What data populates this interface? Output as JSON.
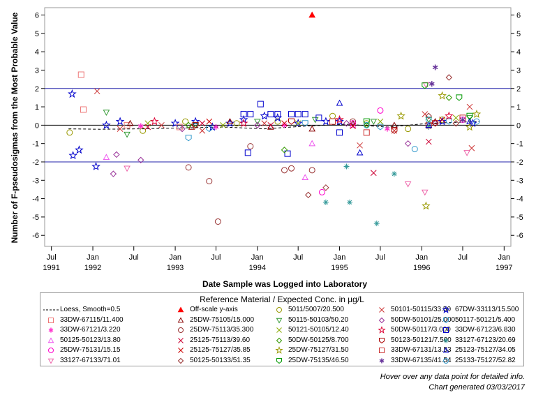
{
  "chart_data": {
    "type": "scatter",
    "ylabel": "Number of F-pseudosigmas from the Most Probable Value",
    "xlabel": "Date Sample was Logged into Laboratory",
    "ylim": [
      -6.6,
      6.4
    ],
    "y_ticks": [
      6,
      5,
      4,
      3,
      2,
      1,
      0,
      -1,
      -2,
      -3,
      -4,
      -5,
      -6
    ],
    "x_ticks": [
      {
        "label": "Jul",
        "sub": "1991",
        "date": "1991-07-01"
      },
      {
        "label": "Jan",
        "sub": "1992",
        "date": "1992-01-01"
      },
      {
        "label": "Jul",
        "sub": "",
        "date": "1992-07-01"
      },
      {
        "label": "Jan",
        "sub": "1993",
        "date": "1993-01-01"
      },
      {
        "label": "Jul",
        "sub": "",
        "date": "1993-07-01"
      },
      {
        "label": "Jan",
        "sub": "1994",
        "date": "1994-01-01"
      },
      {
        "label": "Jul",
        "sub": "",
        "date": "1994-07-01"
      },
      {
        "label": "Jan",
        "sub": "1995",
        "date": "1995-01-01"
      },
      {
        "label": "Jul",
        "sub": "",
        "date": "1995-07-01"
      },
      {
        "label": "Jan",
        "sub": "1996",
        "date": "1996-01-01"
      },
      {
        "label": "Jul",
        "sub": "",
        "date": "1996-07-01"
      },
      {
        "label": "Jan",
        "sub": "1997",
        "date": "1997-01-01"
      }
    ],
    "xlim": [
      "1991-06-01",
      "1997-01-31"
    ],
    "reference_lines": [
      2,
      0,
      -2
    ],
    "legend_title": "Reference Material / Expected Conc. in µg/L",
    "legend_placement": "bottom",
    "series": [
      {
        "name": "Loess, Smooth=0.5",
        "marker": "dash",
        "color": "#000000",
        "line": true,
        "points": [
          [
            "1991-09-15",
            -0.2
          ],
          [
            "1992-02-01",
            -0.22
          ],
          [
            "1992-08-01",
            -0.2
          ],
          [
            "1993-02-01",
            -0.15
          ],
          [
            "1993-08-01",
            -0.1
          ],
          [
            "1994-02-01",
            -0.2
          ],
          [
            "1994-08-01",
            -0.05
          ],
          [
            "1995-02-01",
            0.05
          ],
          [
            "1995-08-01",
            -0.1
          ],
          [
            "1996-02-01",
            0.1
          ],
          [
            "1996-09-15",
            0.2
          ]
        ]
      },
      {
        "name": "Off-scale y-axis",
        "marker": "triangle-filled",
        "color": "#ff0000",
        "points": [
          [
            "1994-09-01",
            6.0
          ]
        ]
      },
      {
        "name": "5011/5007/20.500",
        "marker": "circle",
        "color": "#999900",
        "points": [
          [
            "1991-09-20",
            -0.4
          ],
          [
            "1992-08-10",
            -0.3
          ],
          [
            "1993-02-15",
            0.2
          ],
          [
            "1993-10-01",
            0.1
          ],
          [
            "1994-04-01",
            0.2
          ],
          [
            "1994-12-01",
            0.5
          ],
          [
            "1995-05-01",
            0.1
          ],
          [
            "1995-11-01",
            -0.2
          ],
          [
            "1996-04-01",
            0.3
          ]
        ]
      },
      {
        "name": "50101-50115/33.50",
        "marker": "x",
        "color": "#cc3333",
        "points": [
          [
            "1992-01-20",
            1.85
          ],
          [
            "1992-05-01",
            -0.2
          ],
          [
            "1992-11-01",
            0.0
          ],
          [
            "1993-05-01",
            -0.3
          ],
          [
            "1994-02-01",
            0.1
          ],
          [
            "1995-04-01",
            -1.1
          ],
          [
            "1995-09-01",
            -0.3
          ],
          [
            "1996-01-15",
            0.6
          ],
          [
            "1996-08-01",
            1.0
          ],
          [
            "1996-08-10",
            -1.25
          ]
        ]
      },
      {
        "name": "67DW-33113/15.500",
        "marker": "star",
        "color": "#0000cc",
        "points": [
          [
            "1991-10-01",
            1.7
          ],
          [
            "1991-10-05",
            -1.65
          ],
          [
            "1991-11-01",
            -1.35
          ],
          [
            "1992-01-15",
            -2.25
          ],
          [
            "1992-03-01",
            0.0
          ],
          [
            "1992-05-01",
            0.2
          ],
          [
            "1993-01-01",
            0.1
          ],
          [
            "1993-04-01",
            0.2
          ],
          [
            "1993-06-15",
            -0.1
          ],
          [
            "1993-09-01",
            0.1
          ],
          [
            "1993-11-01",
            0.3
          ],
          [
            "1994-02-01",
            0.5
          ],
          [
            "1994-04-01",
            0.4
          ],
          [
            "1994-07-01",
            0.1
          ],
          [
            "1994-11-01",
            0.2
          ],
          [
            "1995-01-01",
            0.2
          ],
          [
            "1996-04-01",
            0.2
          ],
          [
            "1996-08-15",
            0.1
          ]
        ]
      },
      {
        "name": "33DW-67115/11.400",
        "marker": "square",
        "color": "#ee7777",
        "points": [
          [
            "1991-11-10",
            2.75
          ],
          [
            "1991-11-20",
            0.85
          ],
          [
            "1992-06-01",
            0.0
          ],
          [
            "1993-01-20",
            -0.1
          ]
        ]
      },
      {
        "name": "25DW-75105/15.000",
        "marker": "triangle",
        "color": "#880000",
        "points": [
          [
            "1992-06-15",
            0.1
          ],
          [
            "1993-03-15",
            -0.1
          ],
          [
            "1993-09-01",
            0.2
          ],
          [
            "1994-03-01",
            -0.1
          ],
          [
            "1994-09-01",
            -0.2
          ],
          [
            "1995-03-01",
            0.1
          ],
          [
            "1995-09-01",
            0.0
          ],
          [
            "1996-03-01",
            0.2
          ]
        ]
      },
      {
        "name": "50115-50103/50.20",
        "marker": "triangle-down",
        "color": "#339933",
        "points": [
          [
            "1992-03-01",
            0.7
          ],
          [
            "1992-06-01",
            -0.5
          ],
          [
            "1993-04-01",
            0.0
          ],
          [
            "1994-01-01",
            0.2
          ],
          [
            "1994-09-15",
            0.3
          ],
          [
            "1995-06-01",
            0.2
          ],
          [
            "1996-02-01",
            0.3
          ],
          [
            "1996-08-01",
            0.4
          ]
        ]
      },
      {
        "name": "50DW-50101/25.000",
        "marker": "diamond",
        "color": "#993399",
        "points": [
          [
            "1992-04-01",
            -2.65
          ],
          [
            "1992-04-15",
            -1.6
          ],
          [
            "1992-08-01",
            -1.9
          ],
          [
            "1993-02-01",
            -0.2
          ],
          [
            "1994-01-01",
            0.0
          ],
          [
            "1995-02-01",
            0.1
          ],
          [
            "1995-11-01",
            -1.0
          ],
          [
            "1996-03-01",
            0.1
          ]
        ]
      },
      {
        "name": "50117-50121/5.400",
        "marker": "shield",
        "color": "#3399cc",
        "points": [
          [
            "1993-03-01",
            -0.7
          ],
          [
            "1993-06-01",
            -0.2
          ],
          [
            "1994-08-01",
            0.1
          ],
          [
            "1995-07-01",
            -0.1
          ],
          [
            "1996-05-01",
            0.2
          ]
        ]
      },
      {
        "name": "33DW-67121/3.220",
        "marker": "asterisk",
        "color": "#ff33cc",
        "points": [
          [
            "1992-08-01",
            -0.05
          ],
          [
            "1993-07-01",
            -0.1
          ],
          [
            "1994-05-01",
            0.0
          ],
          [
            "1995-08-01",
            -0.2
          ]
        ]
      },
      {
        "name": "25DW-75113/35.300",
        "marker": "circle",
        "color": "#993333",
        "points": [
          [
            "1993-03-01",
            -2.3
          ],
          [
            "1993-06-01",
            -3.05
          ],
          [
            "1993-07-10",
            -5.25
          ],
          [
            "1993-12-01",
            -1.15
          ],
          [
            "1994-05-01",
            -2.45
          ],
          [
            "1994-06-01",
            -2.35
          ],
          [
            "1994-09-01",
            -2.45
          ],
          [
            "1995-03-01",
            0.2
          ]
        ]
      },
      {
        "name": "50121-50105/12.40",
        "marker": "x",
        "color": "#88aa00",
        "points": [
          [
            "1992-09-01",
            0.1
          ],
          [
            "1993-08-01",
            0.0
          ],
          [
            "1994-07-01",
            0.1
          ],
          [
            "1995-07-01",
            0.2
          ],
          [
            "1996-06-01",
            0.4
          ]
        ]
      },
      {
        "name": "50DW-50117/3.000",
        "marker": "star",
        "color": "#dd0033",
        "points": [
          [
            "1992-10-01",
            0.2
          ],
          [
            "1993-11-01",
            0.1
          ],
          [
            "1995-01-01",
            0.3
          ],
          [
            "1996-05-01",
            0.5
          ]
        ]
      },
      {
        "name": "33DW-67123/6.830",
        "marker": "square",
        "color": "#0000cc",
        "points": [
          [
            "1993-11-01",
            0.6
          ],
          [
            "1993-12-01",
            0.6
          ],
          [
            "1994-01-15",
            1.15
          ],
          [
            "1994-03-01",
            0.6
          ],
          [
            "1994-04-01",
            0.6
          ],
          [
            "1994-06-01",
            0.6
          ],
          [
            "1994-07-01",
            0.6
          ],
          [
            "1994-08-01",
            0.6
          ],
          [
            "1994-10-01",
            0.4
          ],
          [
            "1994-05-15",
            -1.55
          ],
          [
            "1993-11-20",
            -1.5
          ],
          [
            "1995-01-01",
            -0.4
          ]
        ]
      },
      {
        "name": "50125-50123/13.80",
        "marker": "triangle",
        "color": "#ee55ee",
        "points": [
          [
            "1992-03-01",
            -1.75
          ],
          [
            "1994-08-01",
            -2.85
          ],
          [
            "1994-09-01",
            -1.0
          ],
          [
            "1995-03-01",
            0.0
          ]
        ]
      },
      {
        "name": "25125-75113/39.60",
        "marker": "x",
        "color": "#cc0033",
        "points": [
          [
            "1992-09-01",
            -0.1
          ],
          [
            "1993-05-01",
            0.1
          ],
          [
            "1994-03-01",
            0.0
          ],
          [
            "1995-06-01",
            -2.6
          ],
          [
            "1996-02-01",
            -0.9
          ]
        ]
      },
      {
        "name": "50DW-50125/8.700",
        "marker": "diamond",
        "color": "#339900",
        "points": [
          [
            "1993-03-01",
            0.0
          ],
          [
            "1994-05-01",
            -1.35
          ],
          [
            "1995-05-01",
            0.0
          ],
          [
            "1996-05-01",
            1.5
          ]
        ]
      },
      {
        "name": "50123-50121/7.500",
        "marker": "shield",
        "color": "#aa0000",
        "points": [
          [
            "1993-04-01",
            0.0
          ],
          [
            "1994-06-01",
            0.2
          ],
          [
            "1995-09-01",
            -0.3
          ],
          [
            "1996-03-01",
            0.1
          ]
        ]
      },
      {
        "name": "33127-67123/20.69",
        "marker": "plus-x",
        "color": "#339999",
        "points": [
          [
            "1994-11-01",
            -4.2
          ],
          [
            "1995-02-01",
            -2.25
          ],
          [
            "1995-02-15",
            -4.2
          ],
          [
            "1995-06-15",
            -5.35
          ],
          [
            "1995-09-01",
            -2.65
          ],
          [
            "1996-02-01",
            -0.1
          ]
        ]
      },
      {
        "name": "25DW-75131/15.15",
        "marker": "circle",
        "color": "#ff00cc",
        "points": [
          [
            "1994-10-15",
            -3.65
          ],
          [
            "1995-03-01",
            0.1
          ],
          [
            "1995-07-01",
            0.8
          ],
          [
            "1996-07-01",
            0.3
          ]
        ]
      },
      {
        "name": "25125-75127/35.85",
        "marker": "x",
        "color": "#cc0000",
        "points": [
          [
            "1993-06-01",
            0.2
          ],
          [
            "1994-05-01",
            0.1
          ],
          [
            "1995-03-01",
            -0.05
          ],
          [
            "1996-04-01",
            0.3
          ]
        ]
      },
      {
        "name": "25DW-75127/31.50",
        "marker": "star",
        "color": "#999900",
        "points": [
          [
            "1995-10-01",
            0.5
          ],
          [
            "1996-01-20",
            -4.4
          ],
          [
            "1996-04-01",
            1.6
          ],
          [
            "1996-09-01",
            0.6
          ],
          [
            "1996-08-01",
            -0.1
          ]
        ]
      },
      {
        "name": "33DW-67131/13.53",
        "marker": "square",
        "color": "#cc3333",
        "points": [
          [
            "1994-12-01",
            0.2
          ],
          [
            "1995-05-01",
            -0.4
          ],
          [
            "1996-02-01",
            0.0
          ],
          [
            "1996-07-01",
            0.4
          ]
        ]
      },
      {
        "name": "25123-75127/34.05",
        "marker": "triangle",
        "color": "#0000cc",
        "points": [
          [
            "1995-01-01",
            1.2
          ],
          [
            "1995-04-01",
            -1.5
          ],
          [
            "1996-02-01",
            0.0
          ],
          [
            "1996-08-01",
            0.2
          ]
        ]
      },
      {
        "name": "33127-67133/71.01",
        "marker": "triangle-down",
        "color": "#ee66aa",
        "points": [
          [
            "1992-06-01",
            -2.35
          ],
          [
            "1995-11-01",
            -3.2
          ],
          [
            "1996-01-15",
            -3.65
          ],
          [
            "1996-01-20",
            2.2
          ],
          [
            "1996-07-20",
            -1.5
          ]
        ]
      },
      {
        "name": "50125-50133/51.35",
        "marker": "diamond",
        "color": "#993333",
        "points": [
          [
            "1994-08-15",
            -3.8
          ],
          [
            "1994-11-01",
            -3.4
          ],
          [
            "1996-02-01",
            0.5
          ],
          [
            "1996-05-01",
            2.6
          ],
          [
            "1996-06-01",
            0.1
          ]
        ]
      },
      {
        "name": "25DW-75135/46.50",
        "marker": "shield",
        "color": "#009900",
        "points": [
          [
            "1995-05-01",
            0.2
          ],
          [
            "1996-01-15",
            2.15
          ],
          [
            "1996-06-15",
            1.5
          ],
          [
            "1996-08-01",
            0.5
          ]
        ]
      },
      {
        "name": "33DW-67135/41.54",
        "marker": "asterisk",
        "color": "#663399",
        "points": [
          [
            "1996-02-15",
            2.25
          ],
          [
            "1996-03-01",
            3.15
          ],
          [
            "1996-07-01",
            0.3
          ]
        ]
      },
      {
        "name": "25133-75127/52.82",
        "marker": "circle",
        "color": "#3399cc",
        "points": [
          [
            "1995-05-01",
            0.0
          ],
          [
            "1995-12-01",
            -1.3
          ],
          [
            "1996-02-01",
            0.3
          ],
          [
            "1996-09-01",
            0.2
          ]
        ]
      }
    ]
  },
  "footnotes": {
    "line1": "Hover over any data point for detailed info.",
    "line2": "Chart generated 03/03/2017"
  }
}
